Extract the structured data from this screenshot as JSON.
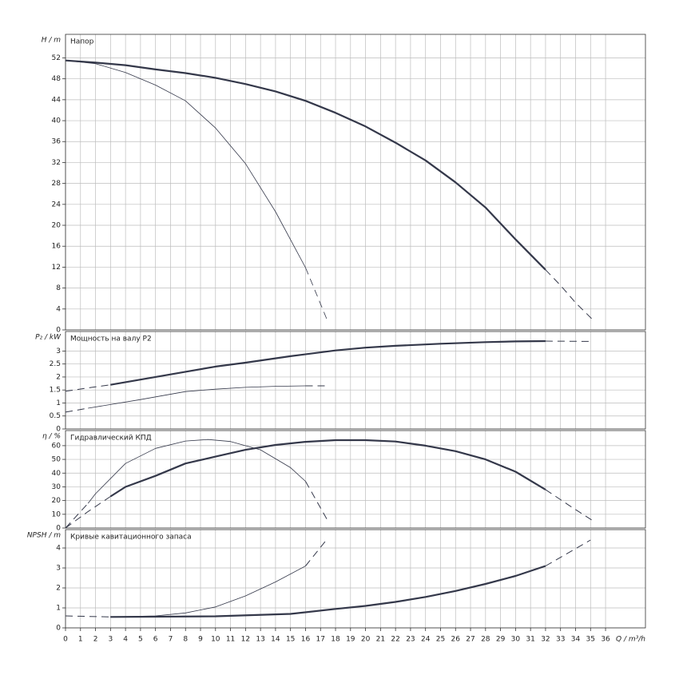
{
  "chart_data": [
    {
      "type": "line",
      "title": "Напор",
      "ylabel": "H / m",
      "xlim": [
        0,
        38.66
      ],
      "xticks": [
        0,
        1,
        2,
        3,
        4,
        5,
        6,
        7,
        8,
        9,
        10,
        11,
        12,
        13,
        14,
        15,
        16,
        17,
        18,
        19,
        20,
        21,
        22,
        23,
        24,
        25,
        26,
        27,
        28,
        29,
        30,
        31,
        32,
        33,
        34,
        35,
        36
      ],
      "ylim": [
        0,
        56.5
      ],
      "yticks": [
        0,
        4,
        8,
        12,
        16,
        20,
        24,
        28,
        32,
        36,
        40,
        44,
        48,
        52
      ],
      "grid": true,
      "series": [
        {
          "color": "#34384a",
          "width": 2.2,
          "dashed": false,
          "x": [
            0,
            2,
            4,
            6,
            8,
            10,
            12,
            14,
            16,
            18,
            20,
            22,
            24,
            26,
            28,
            30,
            32
          ],
          "values": [
            51.5,
            51.1,
            50.6,
            49.8,
            49.1,
            48.2,
            47,
            45.6,
            43.8,
            41.5,
            38.9,
            35.8,
            32.4,
            28.2,
            23.4,
            17.3,
            11.5
          ]
        },
        {
          "color": "#34384a",
          "width": 1,
          "dashed": true,
          "x": [
            32,
            33,
            34,
            35.2
          ],
          "values": [
            11.5,
            8.5,
            5.2,
            1.8
          ]
        },
        {
          "color": "#34384a",
          "width": 0.8,
          "dashed": false,
          "x": [
            0,
            2,
            4,
            6,
            8,
            10,
            12,
            14,
            16
          ],
          "values": [
            51.5,
            50.9,
            49.2,
            46.8,
            43.8,
            38.6,
            31.8,
            22.6,
            11.9
          ]
        },
        {
          "color": "#34384a",
          "width": 0.8,
          "dashed": true,
          "x": [
            16,
            17,
            17.5
          ],
          "values": [
            11.9,
            5,
            1.5
          ]
        }
      ]
    },
    {
      "type": "line",
      "title": "Мощность на валу P2",
      "ylabel": "P₂ / kW",
      "xlim": [
        0,
        38.66
      ],
      "xticks": [
        0,
        1,
        2,
        3,
        4,
        5,
        6,
        7,
        8,
        9,
        10,
        11,
        12,
        13,
        14,
        15,
        16,
        17,
        18,
        19,
        20,
        21,
        22,
        23,
        24,
        25,
        26,
        27,
        28,
        29,
        30,
        31,
        32,
        33,
        34,
        35,
        36
      ],
      "ylim": [
        0,
        3.75
      ],
      "yticks": [
        0,
        0.5,
        1,
        1.5,
        2,
        2.5,
        3
      ],
      "grid": true,
      "series": [
        {
          "color": "#34384a",
          "width": 1,
          "dashed": true,
          "x": [
            0,
            1.5,
            3
          ],
          "values": [
            1.45,
            1.58,
            1.7
          ]
        },
        {
          "color": "#34384a",
          "width": 2.2,
          "dashed": false,
          "x": [
            3,
            5,
            8,
            10,
            12,
            15,
            18,
            20,
            22,
            25,
            28,
            30,
            32
          ],
          "values": [
            1.7,
            1.9,
            2.2,
            2.4,
            2.55,
            2.8,
            3.02,
            3.13,
            3.2,
            3.28,
            3.34,
            3.37,
            3.38
          ]
        },
        {
          "color": "#34384a",
          "width": 1,
          "dashed": true,
          "x": [
            32,
            35
          ],
          "values": [
            3.38,
            3.37
          ]
        },
        {
          "color": "#34384a",
          "width": 1,
          "dashed": true,
          "x": [
            0,
            1.5
          ],
          "values": [
            0.65,
            0.8
          ]
        },
        {
          "color": "#34384a",
          "width": 0.8,
          "dashed": false,
          "x": [
            1.5,
            5,
            8,
            10,
            12,
            14,
            16
          ],
          "values": [
            0.8,
            1.13,
            1.44,
            1.53,
            1.6,
            1.64,
            1.66
          ]
        },
        {
          "color": "#34384a",
          "width": 1,
          "dashed": true,
          "x": [
            16,
            17.5
          ],
          "values": [
            1.66,
            1.66
          ]
        }
      ]
    },
    {
      "type": "line",
      "title": "Гидравлический КПД",
      "ylabel": "η / %",
      "xlim": [
        0,
        38.66
      ],
      "xticks": [
        0,
        1,
        2,
        3,
        4,
        5,
        6,
        7,
        8,
        9,
        10,
        11,
        12,
        13,
        14,
        15,
        16,
        17,
        18,
        19,
        20,
        21,
        22,
        23,
        24,
        25,
        26,
        27,
        28,
        29,
        30,
        31,
        32,
        33,
        34,
        35,
        36
      ],
      "ylim": [
        0,
        71
      ],
      "yticks": [
        0,
        10,
        20,
        30,
        40,
        50,
        60
      ],
      "grid": true,
      "series": [
        {
          "color": "#34384a",
          "width": 1,
          "dashed": true,
          "x": [
            0,
            1.5,
            3
          ],
          "values": [
            0,
            12,
            23
          ]
        },
        {
          "color": "#34384a",
          "width": 2.2,
          "dashed": false,
          "x": [
            3,
            4,
            6,
            8,
            10,
            12,
            14,
            16,
            18,
            20,
            22,
            24,
            26,
            28,
            30,
            32
          ],
          "values": [
            23,
            30,
            38,
            47,
            52,
            57,
            60.5,
            62.8,
            64,
            64,
            63,
            60,
            56,
            50,
            41,
            28
          ]
        },
        {
          "color": "#34384a",
          "width": 1,
          "dashed": true,
          "x": [
            32,
            33.5,
            35.2
          ],
          "values": [
            28,
            17,
            5
          ]
        },
        {
          "color": "#34384a",
          "width": 1,
          "dashed": true,
          "x": [
            0,
            1.5
          ],
          "values": [
            0,
            18
          ]
        },
        {
          "color": "#34384a",
          "width": 0.8,
          "dashed": false,
          "x": [
            1.5,
            2,
            4,
            6,
            8,
            9.5,
            11,
            13,
            15,
            16
          ],
          "values": [
            18,
            25,
            47,
            58,
            63.4,
            64.5,
            63,
            57,
            44,
            34
          ]
        },
        {
          "color": "#34384a",
          "width": 1,
          "dashed": true,
          "x": [
            16,
            17.5
          ],
          "values": [
            34,
            5
          ]
        }
      ]
    },
    {
      "type": "line",
      "title": "Кривые кавитационного запаса",
      "ylabel": "NPSH / m",
      "xlabel": "Q / m³/h",
      "xlim": [
        0,
        38.66
      ],
      "xticks": [
        0,
        1,
        2,
        3,
        4,
        5,
        6,
        7,
        8,
        9,
        10,
        11,
        12,
        13,
        14,
        15,
        16,
        17,
        18,
        19,
        20,
        21,
        22,
        23,
        24,
        25,
        26,
        27,
        28,
        29,
        30,
        31,
        32,
        33,
        34,
        35,
        36
      ],
      "ylim": [
        0,
        4.92
      ],
      "yticks": [
        0,
        1,
        2,
        3,
        4
      ],
      "grid": true,
      "series": [
        {
          "color": "#34384a",
          "width": 1,
          "dashed": true,
          "x": [
            0,
            3
          ],
          "values": [
            0.6,
            0.55
          ]
        },
        {
          "color": "#34384a",
          "width": 2.2,
          "dashed": false,
          "x": [
            3,
            10,
            15,
            18,
            20,
            22,
            24,
            26,
            28,
            30,
            32
          ],
          "values": [
            0.55,
            0.58,
            0.7,
            0.95,
            1.1,
            1.3,
            1.55,
            1.85,
            2.2,
            2.6,
            3.1
          ]
        },
        {
          "color": "#34384a",
          "width": 1,
          "dashed": true,
          "x": [
            32,
            35
          ],
          "values": [
            3.1,
            4.4
          ]
        },
        {
          "color": "#34384a",
          "width": 0.8,
          "dashed": false,
          "x": [
            3,
            6,
            8,
            10,
            12,
            14,
            16
          ],
          "values": [
            0.55,
            0.6,
            0.75,
            1.05,
            1.6,
            2.3,
            3.1
          ]
        },
        {
          "color": "#34384a",
          "width": 1,
          "dashed": true,
          "x": [
            16,
            17.5
          ],
          "values": [
            3.1,
            4.5
          ]
        }
      ]
    }
  ]
}
